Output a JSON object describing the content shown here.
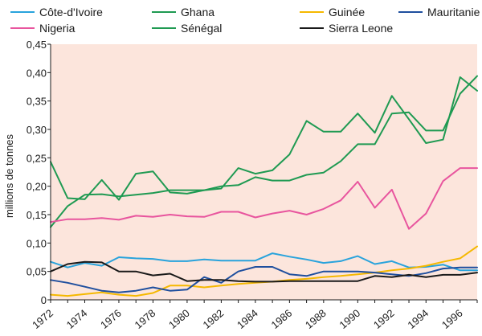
{
  "chart_data": {
    "type": "line",
    "title": "",
    "xlabel": "",
    "ylabel": "millions de tonnes",
    "xlim": [
      1972,
      1997
    ],
    "ylim": [
      0,
      0.45
    ],
    "x_tick_labels": [
      "1972",
      "1974",
      "1976",
      "1978",
      "1980",
      "1982",
      "1984",
      "1986",
      "1988",
      "1990",
      "1992",
      "1994",
      "1996"
    ],
    "y_ticks": [
      0,
      0.05,
      0.1,
      0.15,
      0.2,
      0.25,
      0.3,
      0.35,
      0.4,
      0.45
    ],
    "y_tick_labels": [
      "0",
      "0,05",
      "0,10",
      "0,15",
      "0,20",
      "0,25",
      "0,30",
      "0,35",
      "0,40",
      "0,45"
    ],
    "grid": false,
    "background": "#fce5dc",
    "legend_position": "top",
    "x": [
      1972,
      1973,
      1974,
      1975,
      1976,
      1977,
      1978,
      1979,
      1980,
      1981,
      1982,
      1983,
      1984,
      1985,
      1986,
      1987,
      1988,
      1989,
      1990,
      1991,
      1992,
      1993,
      1994,
      1995,
      1996,
      1997
    ],
    "series": [
      {
        "name": "Côte-d'Ivoire",
        "color": "#29a3dc",
        "values": [
          0.067,
          0.057,
          0.065,
          0.06,
          0.075,
          0.073,
          0.072,
          0.068,
          0.068,
          0.071,
          0.069,
          0.069,
          0.069,
          0.082,
          0.076,
          0.071,
          0.065,
          0.068,
          0.077,
          0.063,
          0.068,
          0.057,
          0.058,
          0.062,
          0.052,
          0.052
        ]
      },
      {
        "name": "Ghana",
        "color": "#1f9a52",
        "values": [
          0.128,
          0.165,
          0.185,
          0.186,
          0.182,
          0.185,
          0.188,
          0.193,
          0.193,
          0.193,
          0.2,
          0.202,
          0.216,
          0.21,
          0.21,
          0.22,
          0.224,
          0.244,
          0.274,
          0.274,
          0.328,
          0.33,
          0.298,
          0.298,
          0.363,
          0.394
        ]
      },
      {
        "name": "Guinée",
        "color": "#f5b800",
        "values": [
          0.009,
          0.007,
          0.01,
          0.013,
          0.009,
          0.007,
          0.012,
          0.025,
          0.025,
          0.022,
          0.025,
          0.028,
          0.03,
          0.032,
          0.035,
          0.037,
          0.04,
          0.042,
          0.045,
          0.048,
          0.052,
          0.055,
          0.06,
          0.067,
          0.073,
          0.094
        ]
      },
      {
        "name": "Mauritanie",
        "color": "#1f4f9e",
        "values": [
          0.035,
          0.03,
          0.023,
          0.016,
          0.013,
          0.016,
          0.022,
          0.016,
          0.018,
          0.04,
          0.03,
          0.05,
          0.058,
          0.058,
          0.045,
          0.042,
          0.05,
          0.05,
          0.05,
          0.048,
          0.045,
          0.042,
          0.047,
          0.055,
          0.057,
          0.057
        ]
      },
      {
        "name": "Nigeria",
        "color": "#e8559e",
        "values": [
          0.137,
          0.142,
          0.142,
          0.144,
          0.141,
          0.148,
          0.146,
          0.15,
          0.147,
          0.146,
          0.155,
          0.155,
          0.145,
          0.152,
          0.157,
          0.15,
          0.16,
          0.175,
          0.208,
          0.162,
          0.194,
          0.125,
          0.152,
          0.209,
          0.232,
          0.232
        ]
      },
      {
        "name": "Sénégal",
        "color": "#1f9a52",
        "values": [
          0.243,
          0.179,
          0.177,
          0.211,
          0.176,
          0.222,
          0.226,
          0.189,
          0.187,
          0.193,
          0.196,
          0.232,
          0.222,
          0.228,
          0.256,
          0.315,
          0.296,
          0.296,
          0.328,
          0.294,
          0.359,
          0.318,
          0.276,
          0.282,
          0.392,
          0.368
        ]
      },
      {
        "name": "Sierra Leone",
        "color": "#1a1a1a",
        "values": [
          0.05,
          0.063,
          0.067,
          0.066,
          0.05,
          0.05,
          0.043,
          0.046,
          0.033,
          0.035,
          0.035,
          0.033,
          0.032,
          0.032,
          0.033,
          0.033,
          0.033,
          0.033,
          0.033,
          0.042,
          0.04,
          0.044,
          0.04,
          0.044,
          0.044,
          0.048
        ]
      }
    ]
  }
}
